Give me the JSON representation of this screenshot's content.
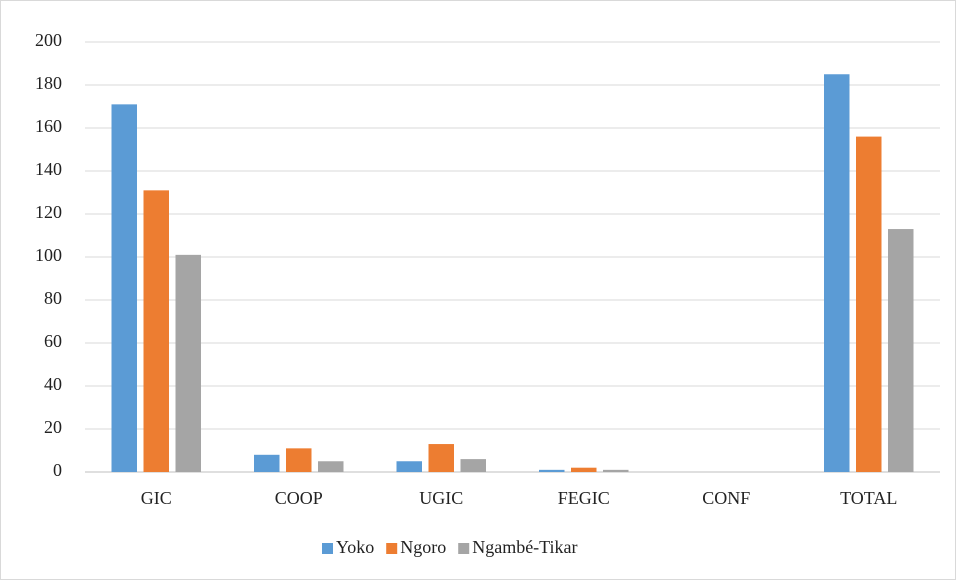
{
  "chart_data": {
    "type": "bar",
    "categories": [
      "GIC",
      "COOP",
      "UGIC",
      "FEGIC",
      "CONF",
      "TOTAL"
    ],
    "series": [
      {
        "name": "Yoko",
        "color": "#5b9bd5",
        "values": [
          171,
          8,
          5,
          1,
          0,
          185
        ]
      },
      {
        "name": "Ngoro",
        "color": "#ed7d31",
        "values": [
          131,
          11,
          13,
          2,
          0,
          156
        ]
      },
      {
        "name": "Ngambé-Tikar",
        "color": "#a5a5a5",
        "values": [
          101,
          5,
          6,
          1,
          0,
          113
        ]
      }
    ],
    "ylim": [
      0,
      200
    ],
    "yticks": [
      0,
      20,
      40,
      60,
      80,
      100,
      120,
      140,
      160,
      180,
      200
    ],
    "grid": true,
    "legend": "bottom"
  }
}
